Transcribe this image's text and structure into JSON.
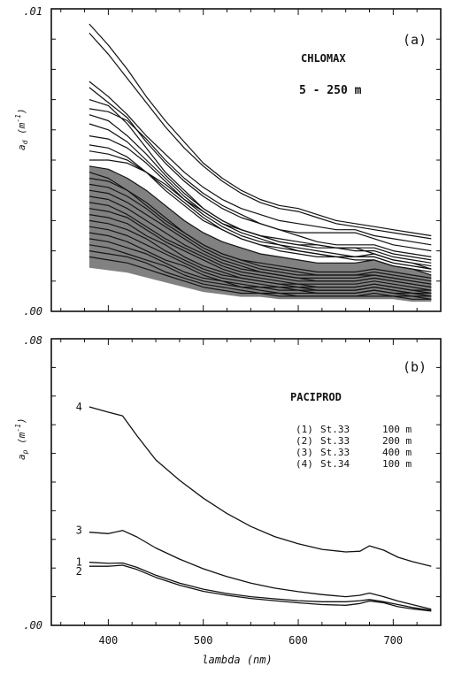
{
  "chart_data": [
    {
      "panel": "(a)",
      "type": "line",
      "title": "CHLOMAX",
      "subtitle": "5 - 250 m",
      "xlabel": "",
      "ylabel": "a_d (m^-1)",
      "ylabel_main": "a",
      "ylabel_sub": "d",
      "ylabel_unit": "(m",
      "ylabel_exp": "-1",
      "ylabel_close": ")",
      "xlim": [
        340,
        750
      ],
      "ylim": [
        0,
        0.01
      ],
      "ytick_labels": [
        ".00",
        ".01"
      ],
      "xticks": [
        400,
        500,
        600,
        700
      ],
      "grid": false,
      "legend": "none",
      "description": "dense bundle of many absorption spectra",
      "x": [
        380,
        400,
        420,
        440,
        460,
        480,
        500,
        520,
        540,
        560,
        580,
        600,
        620,
        640,
        660,
        680,
        700,
        720,
        740
      ],
      "series": [
        {
          "values": [
            0.0095,
            0.0088,
            0.008,
            0.0071,
            0.0063,
            0.0056,
            0.0049,
            0.0044,
            0.004,
            0.0037,
            0.0035,
            0.0034,
            0.0032,
            0.003,
            0.0029,
            0.0028,
            0.0027,
            0.0026,
            0.0025
          ]
        },
        {
          "values": [
            0.0092,
            0.0085,
            0.0077,
            0.0069,
            0.0061,
            0.0054,
            0.0048,
            0.0043,
            0.0039,
            0.0036,
            0.0034,
            0.0033,
            0.0031,
            0.0029,
            0.0028,
            0.0027,
            0.0026,
            0.0025,
            0.0024
          ]
        },
        {
          "values": [
            0.0076,
            0.0071,
            0.0065,
            0.0058,
            0.0052,
            0.0046,
            0.0041,
            0.0037,
            0.0034,
            0.0032,
            0.003,
            0.0029,
            0.0028,
            0.0027,
            0.0027,
            0.0025,
            0.0024,
            0.0023,
            0.0022
          ]
        },
        {
          "values": [
            0.0074,
            0.0069,
            0.0064,
            0.0056,
            0.0049,
            0.0043,
            0.0038,
            0.0034,
            0.0031,
            0.0029,
            0.0027,
            0.0026,
            0.0026,
            0.0026,
            0.0026,
            0.0024,
            0.0022,
            0.0021,
            0.002
          ]
        },
        {
          "values": [
            0.007,
            0.0068,
            0.0062,
            0.0054,
            0.0046,
            0.004,
            0.0034,
            0.003,
            0.0027,
            0.0025,
            0.0023,
            0.0022,
            0.0022,
            0.0021,
            0.0021,
            0.0021,
            0.0019,
            0.0018,
            0.0017
          ]
        },
        {
          "values": [
            0.0067,
            0.0066,
            0.0063,
            0.0057,
            0.005,
            0.0044,
            0.0039,
            0.0035,
            0.0032,
            0.0029,
            0.0027,
            0.0025,
            0.0023,
            0.0022,
            0.0022,
            0.0022,
            0.002,
            0.0019,
            0.0018
          ]
        },
        {
          "values": [
            0.0065,
            0.0063,
            0.0058,
            0.0052,
            0.0045,
            0.0039,
            0.0034,
            0.003,
            0.0027,
            0.0025,
            0.0024,
            0.0023,
            0.0022,
            0.0021,
            0.002,
            0.002,
            0.0018,
            0.0017,
            0.0016
          ]
        },
        {
          "values": [
            0.0062,
            0.006,
            0.0056,
            0.005,
            0.0044,
            0.0038,
            0.0033,
            0.0029,
            0.0027,
            0.0025,
            0.0023,
            0.0022,
            0.0021,
            0.0021,
            0.0021,
            0.0019,
            0.0017,
            0.0016,
            0.0015
          ]
        },
        {
          "values": [
            0.0058,
            0.0057,
            0.0054,
            0.0049,
            0.0043,
            0.0037,
            0.0032,
            0.0028,
            0.0025,
            0.0023,
            0.0022,
            0.0021,
            0.002,
            0.0019,
            0.0018,
            0.0018,
            0.0016,
            0.0015,
            0.0014
          ]
        },
        {
          "values": [
            0.0055,
            0.0054,
            0.0051,
            0.0046,
            0.004,
            0.0035,
            0.003,
            0.0027,
            0.0024,
            0.0022,
            0.0021,
            0.002,
            0.0019,
            0.0018,
            0.0018,
            0.0018,
            0.0016,
            0.0015,
            0.0014
          ]
        },
        {
          "values": [
            0.0053,
            0.0052,
            0.005,
            0.0046,
            0.0041,
            0.0036,
            0.0031,
            0.0027,
            0.0024,
            0.0022,
            0.002,
            0.0019,
            0.0018,
            0.0018,
            0.0018,
            0.0019,
            0.0017,
            0.0016,
            0.0014
          ]
        },
        {
          "values": [
            0.005,
            0.005,
            0.0049,
            0.0046,
            0.0042,
            0.0037,
            0.0033,
            0.0029,
            0.0026,
            0.0024,
            0.0022,
            0.002,
            0.0019,
            0.0018,
            0.0017,
            0.0017,
            0.0015,
            0.0014,
            0.0013
          ]
        },
        {
          "values": [
            0.0048,
            0.0047,
            0.0044,
            0.004,
            0.0035,
            0.003,
            0.0026,
            0.0023,
            0.0021,
            0.0019,
            0.0018,
            0.0017,
            0.0016,
            0.0016,
            0.0016,
            0.0017,
            0.0015,
            0.0014,
            0.0012
          ]
        },
        {
          "values": [
            0.0046,
            0.0044,
            0.004,
            0.0035,
            0.003,
            0.0026,
            0.0022,
            0.0019,
            0.0017,
            0.0016,
            0.0015,
            0.0014,
            0.0013,
            0.0013,
            0.0013,
            0.0014,
            0.0013,
            0.0012,
            0.0011
          ]
        },
        {
          "values": [
            0.0044,
            0.0043,
            0.004,
            0.0036,
            0.0031,
            0.0026,
            0.0022,
            0.0019,
            0.0017,
            0.0015,
            0.0014,
            0.0013,
            0.0012,
            0.0012,
            0.0012,
            0.0012,
            0.0011,
            0.001,
            0.0009
          ]
        },
        {
          "values": [
            0.0042,
            0.0041,
            0.0038,
            0.0034,
            0.0029,
            0.0025,
            0.0021,
            0.0018,
            0.0016,
            0.0014,
            0.0013,
            0.0012,
            0.0012,
            0.0012,
            0.0012,
            0.0013,
            0.0012,
            0.0011,
            0.001
          ]
        },
        {
          "values": [
            0.004,
            0.0039,
            0.0036,
            0.0032,
            0.0028,
            0.0024,
            0.002,
            0.0017,
            0.0015,
            0.0013,
            0.0012,
            0.0011,
            0.0011,
            0.0011,
            0.0011,
            0.0012,
            0.0011,
            0.001,
            0.0009
          ]
        },
        {
          "values": [
            0.0038,
            0.0037,
            0.0034,
            0.003,
            0.0026,
            0.0022,
            0.0019,
            0.0016,
            0.0014,
            0.0013,
            0.0012,
            0.0011,
            0.001,
            0.001,
            0.001,
            0.0011,
            0.001,
            0.0009,
            0.0008
          ]
        },
        {
          "values": [
            0.0036,
            0.0035,
            0.0032,
            0.0028,
            0.0024,
            0.0021,
            0.0018,
            0.0015,
            0.0013,
            0.0012,
            0.0011,
            0.001,
            0.001,
            0.001,
            0.001,
            0.0011,
            0.001,
            0.0009,
            0.0008
          ]
        },
        {
          "values": [
            0.0034,
            0.0033,
            0.0031,
            0.0027,
            0.0023,
            0.002,
            0.0017,
            0.0014,
            0.0012,
            0.0011,
            0.001,
            0.0009,
            0.0009,
            0.0009,
            0.0009,
            0.001,
            0.0009,
            0.0008,
            0.0007
          ]
        },
        {
          "values": [
            0.0032,
            0.0031,
            0.0029,
            0.0025,
            0.0022,
            0.0018,
            0.0015,
            0.0013,
            0.0011,
            0.001,
            0.0009,
            0.0009,
            0.0008,
            0.0008,
            0.0008,
            0.0009,
            0.0008,
            0.0007,
            0.0007
          ]
        },
        {
          "values": [
            0.003,
            0.0029,
            0.0027,
            0.0024,
            0.002,
            0.0017,
            0.0014,
            0.0012,
            0.0011,
            0.001,
            0.0009,
            0.0008,
            0.0008,
            0.0008,
            0.0008,
            0.0009,
            0.0008,
            0.0007,
            0.0006
          ]
        },
        {
          "values": [
            0.0028,
            0.0027,
            0.0025,
            0.0022,
            0.0019,
            0.0016,
            0.0013,
            0.0011,
            0.001,
            0.0009,
            0.0008,
            0.0008,
            0.0007,
            0.0007,
            0.0007,
            0.0008,
            0.0007,
            0.0006,
            0.0006
          ]
        },
        {
          "values": [
            0.0026,
            0.0025,
            0.0023,
            0.002,
            0.0017,
            0.0015,
            0.0012,
            0.001,
            0.0009,
            0.0008,
            0.0008,
            0.0007,
            0.0007,
            0.0007,
            0.0007,
            0.0008,
            0.0007,
            0.0006,
            0.0005
          ]
        },
        {
          "values": [
            0.0024,
            0.0023,
            0.0021,
            0.0019,
            0.0016,
            0.0013,
            0.0011,
            0.001,
            0.0008,
            0.0008,
            0.0007,
            0.0007,
            0.0006,
            0.0006,
            0.0006,
            0.0007,
            0.0006,
            0.0006,
            0.0005
          ]
        },
        {
          "values": [
            0.0022,
            0.0021,
            0.0019,
            0.0017,
            0.0015,
            0.0012,
            0.001,
            0.0009,
            0.0008,
            0.0007,
            0.0006,
            0.0006,
            0.0006,
            0.0006,
            0.0006,
            0.0007,
            0.0006,
            0.0005,
            0.0005
          ]
        },
        {
          "values": [
            0.002,
            0.0019,
            0.0018,
            0.0016,
            0.0013,
            0.0011,
            0.0009,
            0.0008,
            0.0007,
            0.0006,
            0.0006,
            0.0005,
            0.0005,
            0.0005,
            0.0005,
            0.0006,
            0.0005,
            0.0005,
            0.0004
          ]
        },
        {
          "values": [
            0.0018,
            0.0017,
            0.0016,
            0.0014,
            0.0012,
            0.001,
            0.0008,
            0.0007,
            0.0006,
            0.0006,
            0.0005,
            0.0005,
            0.0005,
            0.0005,
            0.0005,
            0.0005,
            0.0005,
            0.0004,
            0.0004
          ]
        }
      ]
    },
    {
      "panel": "(b)",
      "type": "line",
      "title": "PACIPROD",
      "xlabel": "lambda (nm)",
      "ylabel": "a_p (m^-1)",
      "ylabel_main": "a",
      "ylabel_sub": "p",
      "ylabel_unit": "(m",
      "ylabel_exp": "-1",
      "ylabel_close": ")",
      "xlim": [
        340,
        750
      ],
      "ylim": [
        0,
        0.08
      ],
      "ytick_labels": [
        ".00",
        ".08"
      ],
      "xticks": [
        400,
        500,
        600,
        700
      ],
      "xtick_labels": [
        "400",
        "500",
        "600",
        "700"
      ],
      "grid": false,
      "legend": "right, inside plot area",
      "legend_entries": [
        {
          "num": "(1)",
          "station": "St.33",
          "depth": "100 m"
        },
        {
          "num": "(2)",
          "station": "St.33",
          "depth": "200 m"
        },
        {
          "num": "(3)",
          "station": "St.33",
          "depth": "400 m"
        },
        {
          "num": "(4)",
          "station": "St.34",
          "depth": "100 m"
        }
      ],
      "x": [
        380,
        400,
        415,
        430,
        450,
        475,
        500,
        525,
        550,
        575,
        600,
        625,
        650,
        665,
        675,
        690,
        705,
        720,
        740
      ],
      "series": [
        {
          "name": "1",
          "values": [
            0.0176,
            0.0173,
            0.0174,
            0.0162,
            0.014,
            0.0118,
            0.0101,
            0.0089,
            0.008,
            0.0074,
            0.0069,
            0.0066,
            0.0066,
            0.0069,
            0.0072,
            0.0066,
            0.0058,
            0.005,
            0.0042
          ]
        },
        {
          "name": "2",
          "values": [
            0.0165,
            0.0165,
            0.0168,
            0.0156,
            0.0134,
            0.0112,
            0.0095,
            0.0084,
            0.0075,
            0.0069,
            0.0063,
            0.0058,
            0.0056,
            0.0061,
            0.0068,
            0.0063,
            0.0052,
            0.0046,
            0.004
          ]
        },
        {
          "name": "3",
          "values": [
            0.026,
            0.0256,
            0.0265,
            0.0247,
            0.0216,
            0.0185,
            0.0158,
            0.0136,
            0.0118,
            0.0104,
            0.0094,
            0.0086,
            0.008,
            0.0084,
            0.009,
            0.008,
            0.0068,
            0.0058,
            0.0045
          ]
        },
        {
          "name": "4",
          "values": [
            0.061,
            0.0595,
            0.0585,
            0.053,
            0.0462,
            0.0405,
            0.0355,
            0.0312,
            0.0276,
            0.0248,
            0.0228,
            0.0212,
            0.0205,
            0.0207,
            0.0222,
            0.021,
            0.019,
            0.0178,
            0.0165
          ]
        }
      ],
      "curve_labels": [
        "1",
        "2",
        "3",
        "4"
      ]
    }
  ]
}
